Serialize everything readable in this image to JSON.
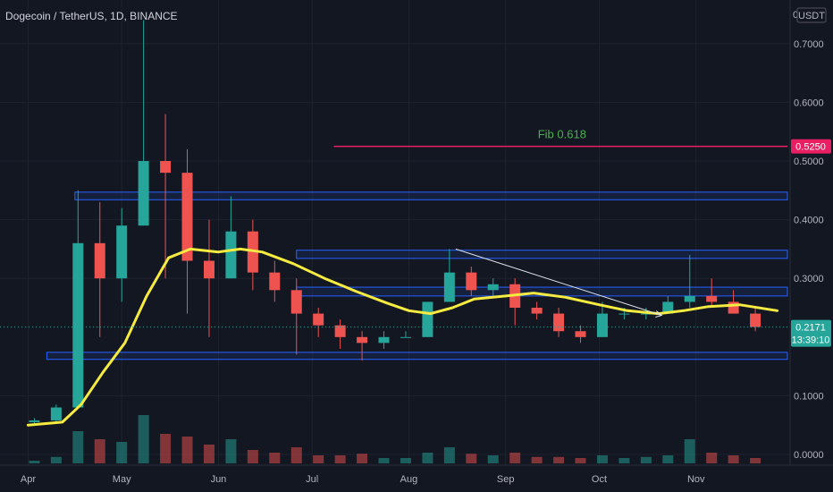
{
  "header": {
    "title": "Dogecoin / TetherUS, 1D, BINANCE",
    "currency_top_value": "0",
    "currency_label": "USDT"
  },
  "chart_data": {
    "type": "candlestick",
    "title": "Dogecoin / TetherUS, 1D, BINANCE",
    "x_axis": {
      "ticks": [
        "Apr",
        "May",
        "Jun",
        "Jul",
        "Aug",
        "Sep",
        "Oct",
        "Nov"
      ],
      "range": [
        "2021-04-01",
        "2021-11-27"
      ]
    },
    "y_axis": {
      "ticks": [
        "0.7000",
        "0.6000",
        "0.5000",
        "0.4000",
        "0.3000",
        "0.1000",
        "0.0000"
      ],
      "range": [
        0.0,
        0.74
      ],
      "scale": "linear"
    },
    "colors": {
      "background": "#131722",
      "up_candle": "#26a69a",
      "down_candle": "#ef5350",
      "moving_average": "#f6eb40",
      "zone_border": "#2962ff",
      "fib_line": "#e91e63",
      "fib_label": "#4caf50",
      "current_price_badge": "#26a69a"
    },
    "moving_average": [
      [
        "2021-04-01",
        0.05
      ],
      [
        "2021-04-12",
        0.055
      ],
      [
        "2021-04-18",
        0.085
      ],
      [
        "2021-04-25",
        0.14
      ],
      [
        "2021-05-02",
        0.19
      ],
      [
        "2021-05-09",
        0.27
      ],
      [
        "2021-05-16",
        0.335
      ],
      [
        "2021-05-23",
        0.35
      ],
      [
        "2021-06-01",
        0.345
      ],
      [
        "2021-06-08",
        0.35
      ],
      [
        "2021-06-15",
        0.345
      ],
      [
        "2021-06-25",
        0.325
      ],
      [
        "2021-07-05",
        0.3
      ],
      [
        "2021-07-15",
        0.278
      ],
      [
        "2021-07-25",
        0.258
      ],
      [
        "2021-08-01",
        0.245
      ],
      [
        "2021-08-08",
        0.24
      ],
      [
        "2021-08-15",
        0.25
      ],
      [
        "2021-08-22",
        0.265
      ],
      [
        "2021-09-01",
        0.27
      ],
      [
        "2021-09-10",
        0.275
      ],
      [
        "2021-09-20",
        0.268
      ],
      [
        "2021-10-01",
        0.255
      ],
      [
        "2021-10-10",
        0.245
      ],
      [
        "2021-10-20",
        0.24
      ],
      [
        "2021-10-28",
        0.245
      ],
      [
        "2021-11-05",
        0.252
      ],
      [
        "2021-11-15",
        0.255
      ],
      [
        "2021-11-27",
        0.245
      ]
    ],
    "candles_weekly": [
      {
        "date": "2021-04-03",
        "open": 0.055,
        "high": 0.062,
        "low": 0.052,
        "close": 0.058
      },
      {
        "date": "2021-04-10",
        "open": 0.058,
        "high": 0.085,
        "low": 0.055,
        "close": 0.08
      },
      {
        "date": "2021-04-17",
        "open": 0.08,
        "high": 0.45,
        "low": 0.08,
        "close": 0.36
      },
      {
        "date": "2021-04-24",
        "open": 0.36,
        "high": 0.43,
        "low": 0.2,
        "close": 0.3
      },
      {
        "date": "2021-05-01",
        "open": 0.3,
        "high": 0.42,
        "low": 0.26,
        "close": 0.39
      },
      {
        "date": "2021-05-08",
        "open": 0.39,
        "high": 0.74,
        "low": 0.39,
        "close": 0.5
      },
      {
        "date": "2021-05-15",
        "open": 0.5,
        "high": 0.58,
        "low": 0.3,
        "close": 0.48
      },
      {
        "date": "2021-05-22",
        "open": 0.48,
        "high": 0.52,
        "low": 0.24,
        "close": 0.33
      },
      {
        "date": "2021-05-29",
        "open": 0.33,
        "high": 0.4,
        "low": 0.2,
        "close": 0.3
      },
      {
        "date": "2021-06-05",
        "open": 0.3,
        "high": 0.44,
        "low": 0.3,
        "close": 0.38
      },
      {
        "date": "2021-06-12",
        "open": 0.38,
        "high": 0.4,
        "low": 0.28,
        "close": 0.31
      },
      {
        "date": "2021-06-19",
        "open": 0.31,
        "high": 0.33,
        "low": 0.26,
        "close": 0.28
      },
      {
        "date": "2021-06-26",
        "open": 0.28,
        "high": 0.3,
        "low": 0.17,
        "close": 0.24
      },
      {
        "date": "2021-07-03",
        "open": 0.24,
        "high": 0.25,
        "low": 0.2,
        "close": 0.22
      },
      {
        "date": "2021-07-10",
        "open": 0.22,
        "high": 0.23,
        "low": 0.18,
        "close": 0.2
      },
      {
        "date": "2021-07-17",
        "open": 0.2,
        "high": 0.21,
        "low": 0.16,
        "close": 0.19
      },
      {
        "date": "2021-07-24",
        "open": 0.19,
        "high": 0.21,
        "low": 0.18,
        "close": 0.2
      },
      {
        "date": "2021-07-31",
        "open": 0.2,
        "high": 0.21,
        "low": 0.2,
        "close": 0.2
      },
      {
        "date": "2021-08-07",
        "open": 0.2,
        "high": 0.26,
        "low": 0.2,
        "close": 0.26
      },
      {
        "date": "2021-08-14",
        "open": 0.26,
        "high": 0.35,
        "low": 0.26,
        "close": 0.31
      },
      {
        "date": "2021-08-21",
        "open": 0.31,
        "high": 0.32,
        "low": 0.27,
        "close": 0.28
      },
      {
        "date": "2021-08-28",
        "open": 0.28,
        "high": 0.3,
        "low": 0.27,
        "close": 0.29
      },
      {
        "date": "2021-09-04",
        "open": 0.29,
        "high": 0.3,
        "low": 0.22,
        "close": 0.25
      },
      {
        "date": "2021-09-11",
        "open": 0.25,
        "high": 0.26,
        "low": 0.23,
        "close": 0.24
      },
      {
        "date": "2021-09-18",
        "open": 0.24,
        "high": 0.25,
        "low": 0.2,
        "close": 0.21
      },
      {
        "date": "2021-09-25",
        "open": 0.21,
        "high": 0.22,
        "low": 0.19,
        "close": 0.2
      },
      {
        "date": "2021-10-02",
        "open": 0.2,
        "high": 0.26,
        "low": 0.2,
        "close": 0.24
      },
      {
        "date": "2021-10-09",
        "open": 0.24,
        "high": 0.25,
        "low": 0.23,
        "close": 0.24
      },
      {
        "date": "2021-10-16",
        "open": 0.24,
        "high": 0.25,
        "low": 0.23,
        "close": 0.24
      },
      {
        "date": "2021-10-23",
        "open": 0.24,
        "high": 0.27,
        "low": 0.24,
        "close": 0.26
      },
      {
        "date": "2021-10-30",
        "open": 0.26,
        "high": 0.34,
        "low": 0.25,
        "close": 0.27
      },
      {
        "date": "2021-11-06",
        "open": 0.27,
        "high": 0.3,
        "low": 0.25,
        "close": 0.26
      },
      {
        "date": "2021-11-13",
        "open": 0.26,
        "high": 0.28,
        "low": 0.24,
        "close": 0.24
      },
      {
        "date": "2021-11-20",
        "open": 0.24,
        "high": 0.25,
        "low": 0.21,
        "close": 0.2171
      }
    ],
    "volume_relative_weekly": [
      0.05,
      0.12,
      0.6,
      0.45,
      0.4,
      0.9,
      0.55,
      0.5,
      0.35,
      0.45,
      0.25,
      0.2,
      0.3,
      0.15,
      0.15,
      0.18,
      0.1,
      0.1,
      0.2,
      0.3,
      0.18,
      0.15,
      0.2,
      0.12,
      0.12,
      0.1,
      0.15,
      0.1,
      0.12,
      0.15,
      0.45,
      0.2,
      0.15,
      0.1
    ],
    "zones": [
      {
        "low": 0.434,
        "high": 0.447,
        "start": "2021-04-16"
      },
      {
        "low": 0.334,
        "high": 0.348,
        "start": "2021-06-26"
      },
      {
        "low": 0.27,
        "high": 0.285,
        "start": "2021-06-26"
      },
      {
        "low": 0.162,
        "high": 0.174,
        "start": "2021-04-07"
      }
    ],
    "fib": {
      "label": "Fib 0.618",
      "value": 0.525,
      "start": "2021-07-08",
      "price_label": "0.5250"
    },
    "trendline": {
      "start": [
        "2021-08-16",
        0.35
      ],
      "end": [
        "2021-10-21",
        0.237
      ]
    },
    "current_price": {
      "label": "0.2171",
      "value": 0.2171,
      "countdown": "13:39:10"
    }
  }
}
